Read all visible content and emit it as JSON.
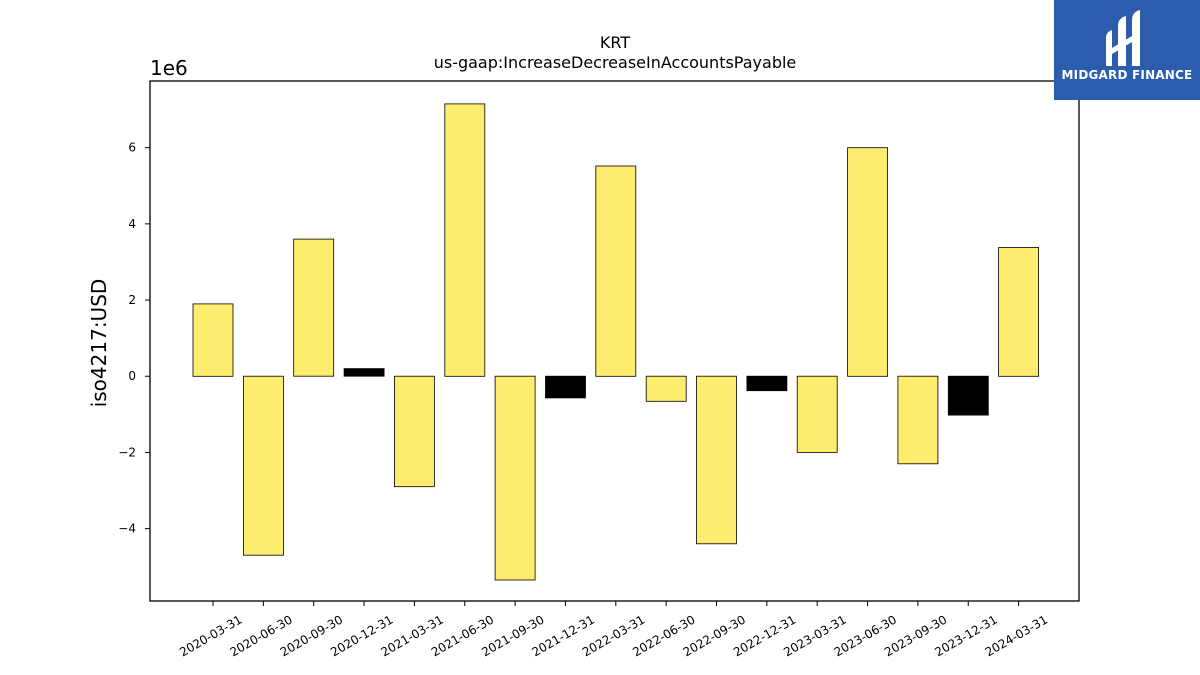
{
  "chart_data": {
    "type": "bar",
    "title": "KRT",
    "subtitle": "us-gaap:IncreaseDecreaseInAccountsPayable",
    "ylabel": "iso4217:USD",
    "xlabel": "",
    "scale_label": "1e6",
    "ylim": [
      -5.9,
      7.75
    ],
    "yticks": [
      -4,
      -2,
      0,
      2,
      4,
      6
    ],
    "categories": [
      "2020-03-31",
      "2020-06-30",
      "2020-09-30",
      "2020-12-31",
      "2021-03-31",
      "2021-06-30",
      "2021-09-30",
      "2021-12-31",
      "2022-03-31",
      "2022-06-30",
      "2022-09-30",
      "2022-12-31",
      "2023-03-31",
      "2023-06-30",
      "2023-09-30",
      "2023-12-31",
      "2024-03-31"
    ],
    "values": [
      1.9,
      -4.7,
      3.6,
      0.2,
      -2.9,
      7.15,
      -5.35,
      -0.57,
      5.52,
      -0.66,
      -4.4,
      -0.38,
      -2.0,
      6.0,
      -2.3,
      -1.02,
      3.38
    ],
    "bar_colors": [
      "#feec6e",
      "#feec6e",
      "#feec6e",
      "#000000",
      "#feec6e",
      "#feec6e",
      "#feec6e",
      "#000000",
      "#feec6e",
      "#feec6e",
      "#feec6e",
      "#000000",
      "#feec6e",
      "#feec6e",
      "#feec6e",
      "#000000",
      "#feec6e"
    ],
    "grid": false,
    "legend": "none"
  },
  "logo": {
    "text": "MIDGARD FINANCE",
    "color": "#2b5cae"
  }
}
